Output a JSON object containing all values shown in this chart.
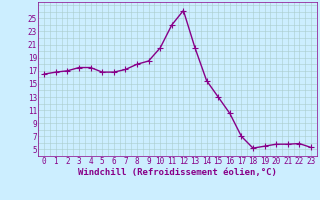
{
  "x": [
    0,
    1,
    2,
    3,
    4,
    5,
    6,
    7,
    8,
    9,
    10,
    11,
    12,
    13,
    14,
    15,
    16,
    17,
    18,
    19,
    20,
    21,
    22,
    23
  ],
  "y": [
    16.5,
    16.8,
    17.0,
    17.5,
    17.5,
    16.8,
    16.8,
    17.2,
    18.0,
    18.5,
    20.5,
    24.0,
    26.2,
    20.5,
    15.5,
    13.0,
    10.5,
    7.0,
    5.2,
    5.5,
    5.8,
    5.8,
    5.9,
    5.3
  ],
  "line_color": "#880088",
  "marker": "+",
  "marker_size": 4,
  "bg_color": "#cceeff",
  "grid_color": "#aacccc",
  "xlabel": "Windchill (Refroidissement éolien,°C)",
  "xlabel_fontsize": 6.5,
  "yticks": [
    5,
    7,
    9,
    11,
    13,
    15,
    17,
    19,
    21,
    23,
    25
  ],
  "xticks": [
    0,
    1,
    2,
    3,
    4,
    5,
    6,
    7,
    8,
    9,
    10,
    11,
    12,
    13,
    14,
    15,
    16,
    17,
    18,
    19,
    20,
    21,
    22,
    23
  ],
  "ylim": [
    4.0,
    27.5
  ],
  "xlim": [
    -0.5,
    23.5
  ],
  "tick_fontsize": 5.5,
  "tick_color": "#880088",
  "spine_color": "#880088",
  "linewidth": 1.0,
  "marker_color": "#880088"
}
